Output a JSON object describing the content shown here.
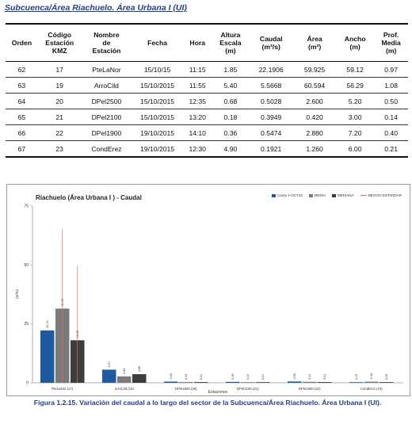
{
  "header": {
    "title": "Subcuenca/Área Riachuelo. Área Urbana I (UI)"
  },
  "table": {
    "headers": [
      "Orden",
      "Código Estación KMZ",
      "Nombre de Estación",
      "Fecha",
      "Hora",
      "Altura Escala (m)",
      "Caudal (m³/s)",
      "Área (m²)",
      "Ancho (m)",
      "Prof. Media (m)"
    ],
    "rows": [
      [
        "62",
        "17",
        "PteLaNor",
        "15/10/15",
        "11:15",
        "1.85",
        "22.1906",
        "59.925",
        "59.12",
        "0.97"
      ],
      [
        "63",
        "19",
        "ArroCild",
        "15/10/2015",
        "11:55",
        "5.40",
        "5.5668",
        "60.594",
        "56.29",
        "1.08"
      ],
      [
        "64",
        "20",
        "DPel2500",
        "15/10/2015",
        "12:35",
        "0.68",
        "0.5028",
        "2.600",
        "5.20",
        "0.50"
      ],
      [
        "65",
        "21",
        "DPel2100",
        "15/10/2015",
        "13:20",
        "0.18",
        "0.3949",
        "0.420",
        "3.00",
        "0.14"
      ],
      [
        "66",
        "22",
        "DPel1900",
        "19/10/2015",
        "14:10",
        "0.36",
        "0.5474",
        "2.880",
        "7.20",
        "0.40"
      ],
      [
        "67",
        "23",
        "CondErez",
        "19/10/2015",
        "12:30",
        "4.90",
        "0.1921",
        "1.260",
        "6.00",
        "0.21"
      ]
    ]
  },
  "chart_data": {
    "type": "bar",
    "title": "Riachuelo (Área Urbana I ) - Caudal",
    "xlabel": "Estaciones",
    "ylabel": "(m³/s)",
    "ylim": [
      0,
      75
    ],
    "yticks": [
      "0",
      "25",
      "50",
      "75"
    ],
    "categories": [
      "PteLaNor (17)",
      "ArroCild (19)",
      "DPel2500 (20)",
      "DPel2100 (21)",
      "DPel1900 (22)",
      "CondErez (23)"
    ],
    "series": [
      {
        "name": "Camp 1-OCT15",
        "color": "#1f5aa0",
        "values": [
          22.19,
          5.57,
          0.5,
          0.39,
          0.55,
          0.19
        ]
      },
      {
        "name": "MEDIA",
        "color": "#7a7a7a",
        "values": [
          31.49,
          2.69,
          0.33,
          0.24,
          0.41,
          0.48
        ]
      },
      {
        "name": "MEDIANA",
        "color": "#3d3d3d",
        "values": [
          18.05,
          3.66,
          0.31,
          0.21,
          0.31,
          0.29
        ]
      }
    ],
    "error_series": {
      "name": "DESVIO ESTANDAR",
      "color": "#e06a6a",
      "values": [
        33.5,
        0,
        0,
        0,
        0,
        0
      ]
    },
    "data_labels": [
      [
        "22,19",
        "5,57",
        "0,50",
        "0,39",
        "0,55",
        "0,19"
      ],
      [
        "31,49",
        "2,69",
        "0,33",
        "0,24",
        "0,41",
        "0,48"
      ],
      [
        "18,05",
        "3,66",
        "0,31",
        "0,21",
        "0,31",
        "0,29"
      ]
    ],
    "grid": false,
    "legend": "top-right"
  },
  "caption": {
    "text": "Figura 1.2.15. Variación del caudal a lo largo del sector de la Subcuenca/Área Riachuelo. Área Urbana I (UI)."
  }
}
